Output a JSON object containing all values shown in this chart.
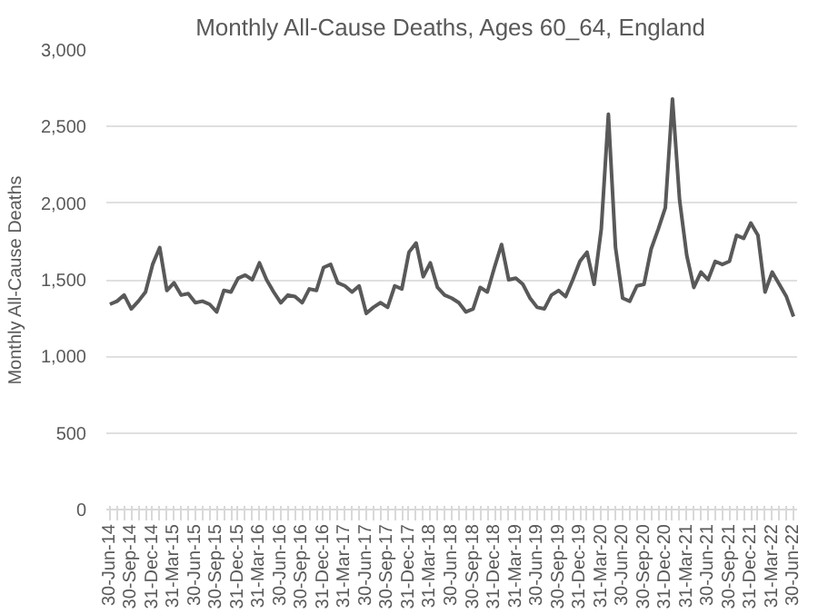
{
  "chart_data": {
    "type": "line",
    "title": "Monthly All-Cause Deaths, Ages 60_64, England",
    "ylabel": "Monthly All-Cause Deaths",
    "categories": [
      "30-Jun-14",
      null,
      null,
      "30-Sep-14",
      null,
      null,
      "31-Dec-14",
      null,
      null,
      "31-Mar-15",
      null,
      null,
      "30-Jun-15",
      null,
      null,
      "30-Sep-15",
      null,
      null,
      "31-Dec-15",
      null,
      null,
      "31-Mar-16",
      null,
      null,
      "30-Jun-16",
      null,
      null,
      "30-Sep-16",
      null,
      null,
      "31-Dec-16",
      null,
      null,
      "31-Mar-17",
      null,
      null,
      "30-Jun-17",
      null,
      null,
      "30-Sep-17",
      null,
      null,
      "31-Dec-17",
      null,
      null,
      "31-Mar-18",
      null,
      null,
      "30-Jun-18",
      null,
      null,
      "30-Sep-18",
      null,
      null,
      "31-Dec-18",
      null,
      null,
      "31-Mar-19",
      null,
      null,
      "30-Jun-19",
      null,
      null,
      "30-Sep-19",
      null,
      null,
      "31-Dec-19",
      null,
      null,
      "31-Mar-20",
      null,
      null,
      "30-Jun-20",
      null,
      null,
      "30-Sep-20",
      null,
      null,
      "31-Dec-20",
      null,
      null,
      "31-Mar-21",
      null,
      null,
      "30-Jun-21",
      null,
      null,
      "30-Sep-21",
      null,
      null,
      "31-Dec-21",
      null,
      null,
      "31-Mar-22",
      null,
      null,
      "30-Jun-22"
    ],
    "series": [
      {
        "color": "#595959",
        "values": [
          1340,
          1360,
          1400,
          1310,
          1360,
          1420,
          1600,
          1710,
          1430,
          1480,
          1400,
          1410,
          1350,
          1360,
          1340,
          1290,
          1430,
          1420,
          1510,
          1530,
          1500,
          1610,
          1500,
          1420,
          1350,
          1400,
          1390,
          1350,
          1440,
          1430,
          1580,
          1600,
          1480,
          1460,
          1420,
          1460,
          1280,
          1320,
          1350,
          1320,
          1460,
          1440,
          1680,
          1740,
          1520,
          1610,
          1450,
          1400,
          1380,
          1350,
          1290,
          1310,
          1450,
          1420,
          1580,
          1730,
          1500,
          1510,
          1470,
          1380,
          1320,
          1310,
          1400,
          1430,
          1390,
          1500,
          1620,
          1680,
          1470,
          1830,
          2580,
          1710,
          1380,
          1360,
          1460,
          1470,
          1700,
          1830,
          1970,
          2680,
          2020,
          1660,
          1450,
          1550,
          1500,
          1620,
          1600,
          1620,
          1790,
          1770,
          1870,
          1790,
          1420,
          1550,
          1470,
          1390,
          1260
        ]
      }
    ],
    "ylim": [
      0,
      3000
    ],
    "yticks": [
      0,
      500,
      {
        "value": 1000,
        "label": "1,000"
      },
      {
        "value": 1500,
        "label": "1,500"
      },
      {
        "value": 2000,
        "label": "2,000"
      },
      {
        "value": 2500,
        "label": "2,500"
      },
      {
        "value": 3000,
        "label": "3,000"
      }
    ],
    "grid": "y",
    "line_style": "solid"
  }
}
